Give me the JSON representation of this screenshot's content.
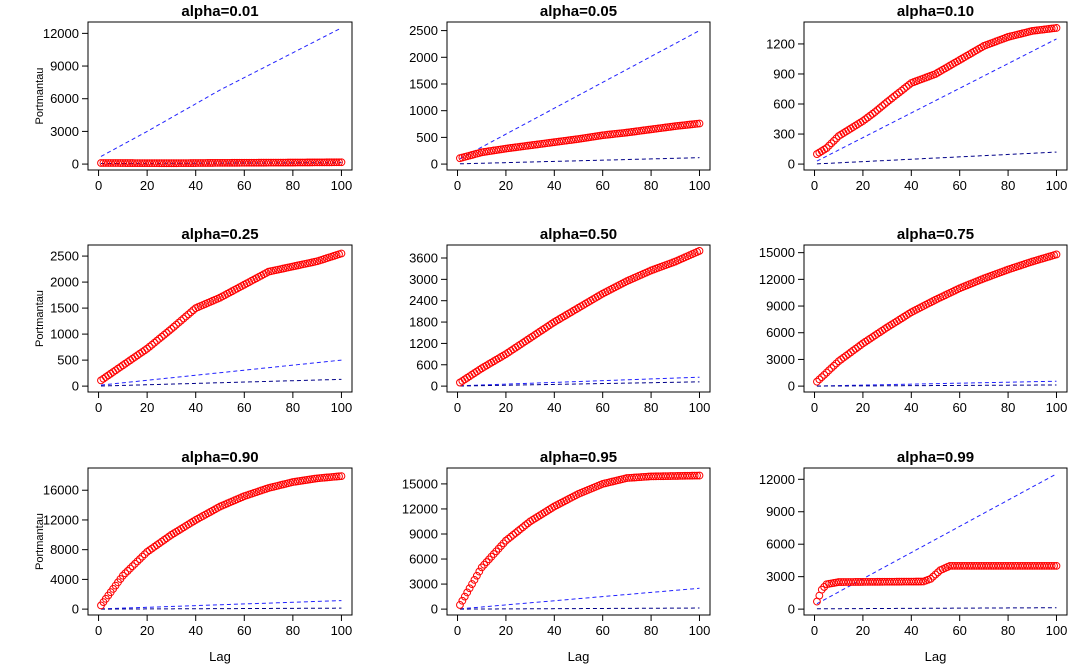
{
  "figure": {
    "xlabel": "Lag",
    "ylabel": "Portmantau",
    "colors": {
      "points": "#ff0000",
      "bound": "#2222ff",
      "lower": "#000088",
      "frame": "#000000"
    }
  },
  "chart_data": [
    {
      "type": "scatter",
      "title": "alpha=0.01",
      "xlabel": "",
      "ylabel": "Portmantau",
      "xlim": [
        0,
        100
      ],
      "xticks": [
        0,
        20,
        40,
        60,
        80,
        100
      ],
      "ylim": [
        0,
        12500
      ],
      "yticks": [
        0,
        3000,
        6000,
        9000,
        12000
      ],
      "curve_knots": [
        [
          1,
          100
        ],
        [
          10,
          95
        ],
        [
          30,
          80
        ],
        [
          50,
          110
        ],
        [
          80,
          140
        ],
        [
          100,
          170
        ]
      ],
      "upper_bound_line": [
        [
          1,
          700
        ],
        [
          20,
          3000
        ],
        [
          50,
          6800
        ],
        [
          100,
          12500
        ]
      ],
      "lower_bound_line": [
        [
          1,
          50
        ],
        [
          100,
          130
        ]
      ]
    },
    {
      "type": "scatter",
      "title": "alpha=0.05",
      "xlabel": "",
      "ylabel": "",
      "xlim": [
        0,
        100
      ],
      "xticks": [
        0,
        20,
        40,
        60,
        80,
        100
      ],
      "ylim": [
        0,
        2550
      ],
      "yticks": [
        0,
        500,
        1000,
        1500,
        2000,
        2500
      ],
      "curve_knots": [
        [
          1,
          110
        ],
        [
          10,
          220
        ],
        [
          20,
          290
        ],
        [
          30,
          350
        ],
        [
          40,
          410
        ],
        [
          50,
          470
        ],
        [
          60,
          540
        ],
        [
          70,
          590
        ],
        [
          80,
          650
        ],
        [
          90,
          710
        ],
        [
          100,
          760
        ]
      ],
      "upper_bound_line": [
        [
          1,
          100
        ],
        [
          100,
          2500
        ]
      ],
      "lower_bound_line": [
        [
          1,
          5
        ],
        [
          100,
          120
        ]
      ]
    },
    {
      "type": "scatter",
      "title": "alpha=0.10",
      "xlabel": "",
      "ylabel": "",
      "xlim": [
        0,
        100
      ],
      "xticks": [
        0,
        20,
        40,
        60,
        80,
        100
      ],
      "ylim": [
        0,
        1360
      ],
      "yticks": [
        0,
        300,
        600,
        900,
        1200
      ],
      "curve_knots": [
        [
          1,
          100
        ],
        [
          5,
          160
        ],
        [
          10,
          280
        ],
        [
          20,
          430
        ],
        [
          25,
          520
        ],
        [
          30,
          620
        ],
        [
          40,
          810
        ],
        [
          50,
          900
        ],
        [
          60,
          1040
        ],
        [
          70,
          1180
        ],
        [
          80,
          1270
        ],
        [
          90,
          1330
        ],
        [
          100,
          1360
        ]
      ],
      "upper_bound_line": [
        [
          1,
          30
        ],
        [
          100,
          1250
        ]
      ],
      "lower_bound_line": [
        [
          1,
          2
        ],
        [
          100,
          120
        ]
      ]
    },
    {
      "type": "scatter",
      "title": "alpha=0.25",
      "xlabel": "",
      "ylabel": "Portmantau",
      "xlim": [
        0,
        100
      ],
      "xticks": [
        0,
        20,
        40,
        60,
        80,
        100
      ],
      "ylim": [
        0,
        2600
      ],
      "yticks": [
        0,
        500,
        1000,
        1500,
        2000,
        2500
      ],
      "curve_knots": [
        [
          1,
          110
        ],
        [
          10,
          400
        ],
        [
          20,
          720
        ],
        [
          30,
          1100
        ],
        [
          40,
          1500
        ],
        [
          50,
          1700
        ],
        [
          60,
          1950
        ],
        [
          70,
          2200
        ],
        [
          80,
          2300
        ],
        [
          90,
          2400
        ],
        [
          100,
          2550
        ]
      ],
      "upper_bound_line": [
        [
          1,
          20
        ],
        [
          100,
          500
        ]
      ],
      "lower_bound_line": [
        [
          1,
          2
        ],
        [
          100,
          130
        ]
      ]
    },
    {
      "type": "scatter",
      "title": "alpha=0.50",
      "xlabel": "",
      "ylabel": "",
      "xlim": [
        0,
        100
      ],
      "xticks": [
        0,
        20,
        40,
        60,
        80,
        100
      ],
      "ylim": [
        0,
        3800
      ],
      "yticks": [
        0,
        600,
        1200,
        1800,
        2400,
        3000,
        3600
      ],
      "curve_knots": [
        [
          1,
          100
        ],
        [
          10,
          500
        ],
        [
          20,
          900
        ],
        [
          30,
          1350
        ],
        [
          40,
          1800
        ],
        [
          50,
          2200
        ],
        [
          60,
          2600
        ],
        [
          70,
          2950
        ],
        [
          80,
          3250
        ],
        [
          90,
          3500
        ],
        [
          100,
          3800
        ]
      ],
      "upper_bound_line": [
        [
          1,
          10
        ],
        [
          100,
          250
        ]
      ],
      "lower_bound_line": [
        [
          1,
          2
        ],
        [
          100,
          120
        ]
      ]
    },
    {
      "type": "scatter",
      "title": "alpha=0.75",
      "xlabel": "",
      "ylabel": "",
      "xlim": [
        0,
        100
      ],
      "xticks": [
        0,
        20,
        40,
        60,
        80,
        100
      ],
      "ylim": [
        0,
        15200
      ],
      "yticks": [
        0,
        3000,
        6000,
        9000,
        12000,
        15000
      ],
      "curve_knots": [
        [
          1,
          500
        ],
        [
          10,
          2800
        ],
        [
          20,
          4800
        ],
        [
          30,
          6600
        ],
        [
          40,
          8300
        ],
        [
          50,
          9700
        ],
        [
          60,
          11000
        ],
        [
          70,
          12100
        ],
        [
          80,
          13100
        ],
        [
          90,
          14000
        ],
        [
          100,
          14800
        ]
      ],
      "upper_bound_line": [
        [
          1,
          10
        ],
        [
          100,
          550
        ]
      ],
      "lower_bound_line": [
        [
          1,
          2
        ],
        [
          100,
          130
        ]
      ]
    },
    {
      "type": "scatter",
      "title": "alpha=0.90",
      "xlabel": "Lag",
      "ylabel": "Portmantau",
      "xlim": [
        0,
        100
      ],
      "xticks": [
        0,
        20,
        40,
        60,
        80,
        100
      ],
      "ylim": [
        0,
        18200
      ],
      "yticks": [
        0,
        4000,
        8000,
        12000,
        16000
      ],
      "curve_knots": [
        [
          1,
          500
        ],
        [
          10,
          4500
        ],
        [
          20,
          7700
        ],
        [
          30,
          10000
        ],
        [
          40,
          12000
        ],
        [
          50,
          13800
        ],
        [
          60,
          15200
        ],
        [
          70,
          16300
        ],
        [
          80,
          17100
        ],
        [
          90,
          17600
        ],
        [
          100,
          17900
        ]
      ],
      "upper_bound_line": [
        [
          1,
          30
        ],
        [
          100,
          1150
        ]
      ],
      "lower_bound_line": [
        [
          1,
          2
        ],
        [
          100,
          130
        ]
      ]
    },
    {
      "type": "scatter",
      "title": "alpha=0.95",
      "xlabel": "Lag",
      "ylabel": "",
      "xlim": [
        0,
        100
      ],
      "xticks": [
        0,
        20,
        40,
        60,
        80,
        100
      ],
      "ylim": [
        0,
        16200
      ],
      "yticks": [
        0,
        3000,
        6000,
        9000,
        12000,
        15000
      ],
      "curve_knots": [
        [
          1,
          500
        ],
        [
          10,
          5000
        ],
        [
          20,
          8200
        ],
        [
          30,
          10500
        ],
        [
          40,
          12300
        ],
        [
          50,
          13800
        ],
        [
          60,
          15000
        ],
        [
          70,
          15700
        ],
        [
          80,
          15900
        ],
        [
          90,
          15950
        ],
        [
          100,
          16000
        ]
      ],
      "upper_bound_line": [
        [
          1,
          30
        ],
        [
          100,
          2500
        ]
      ],
      "lower_bound_line": [
        [
          1,
          2
        ],
        [
          100,
          130
        ]
      ]
    },
    {
      "type": "scatter",
      "title": "alpha=0.99",
      "xlabel": "Lag",
      "ylabel": "",
      "xlim": [
        0,
        100
      ],
      "xticks": [
        0,
        20,
        40,
        60,
        80,
        100
      ],
      "ylim": [
        0,
        12500
      ],
      "yticks": [
        0,
        3000,
        6000,
        9000,
        12000
      ],
      "curve_knots": [
        [
          1,
          700
        ],
        [
          3,
          1800
        ],
        [
          5,
          2300
        ],
        [
          10,
          2500
        ],
        [
          45,
          2550
        ],
        [
          48,
          2800
        ],
        [
          52,
          3600
        ],
        [
          56,
          4000
        ],
        [
          100,
          4000
        ]
      ],
      "upper_bound_line": [
        [
          1,
          500
        ],
        [
          100,
          12500
        ]
      ],
      "lower_bound_line": [
        [
          1,
          30
        ],
        [
          100,
          130
        ]
      ]
    }
  ]
}
